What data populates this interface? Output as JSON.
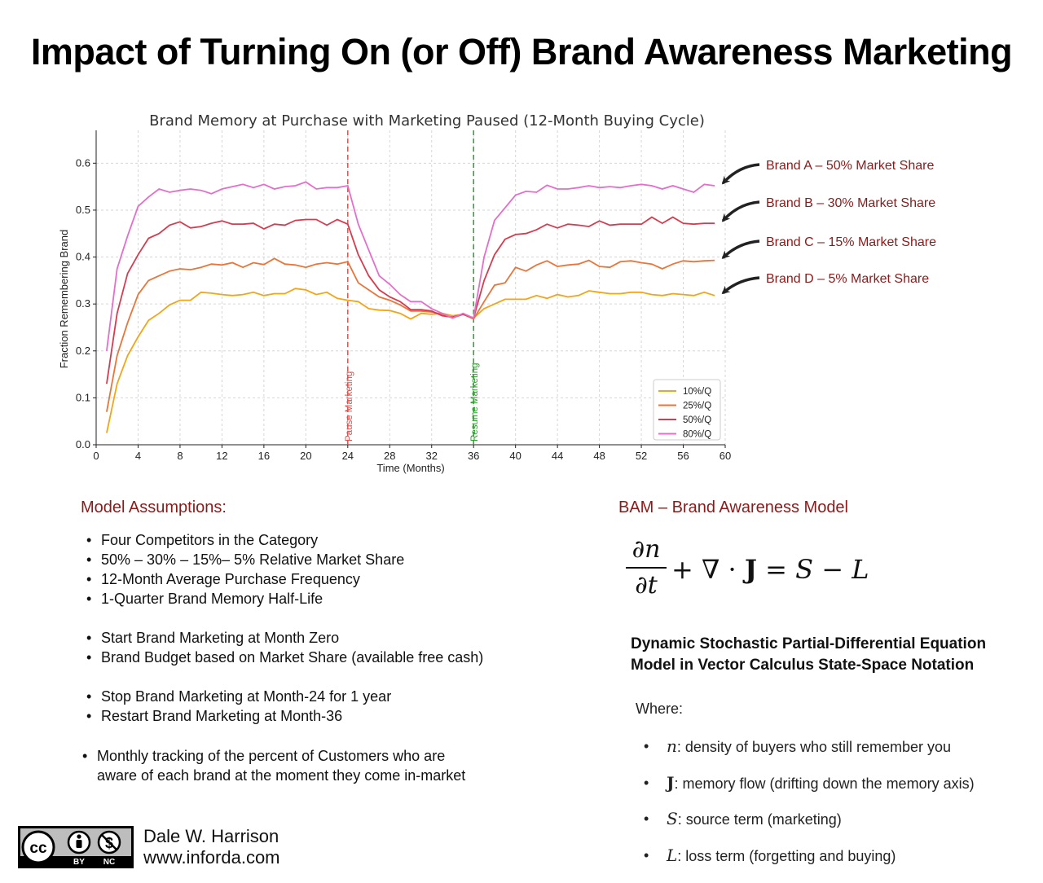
{
  "title": "Impact of Turning On (or Off) Brand Awareness Marketing",
  "chart_data": {
    "type": "line",
    "title": "Brand Memory at Purchase with Marketing Paused (12-Month Buying Cycle)",
    "xlabel": "Time (Months)",
    "ylabel": "Fraction Remembering Brand",
    "xlim": [
      0,
      60
    ],
    "ylim": [
      0,
      0.67
    ],
    "xticks": [
      0,
      4,
      8,
      12,
      16,
      20,
      24,
      28,
      32,
      36,
      40,
      44,
      48,
      52,
      56,
      60
    ],
    "yticks": [
      0.0,
      0.1,
      0.2,
      0.3,
      0.4,
      0.5,
      0.6
    ],
    "ytick_labels": [
      "0.0",
      "0.1",
      "0.2",
      "0.3",
      "0.4",
      "0.5",
      "0.6"
    ],
    "grid": true,
    "legend_position": "lower-right",
    "x": [
      1,
      2,
      3,
      4,
      5,
      6,
      7,
      8,
      9,
      10,
      11,
      12,
      13,
      14,
      15,
      16,
      17,
      18,
      19,
      20,
      21,
      22,
      23,
      24,
      25,
      26,
      27,
      28,
      29,
      30,
      31,
      32,
      33,
      34,
      35,
      36,
      37,
      38,
      39,
      40,
      41,
      42,
      43,
      44,
      45,
      46,
      47,
      48,
      49,
      50,
      51,
      52,
      53,
      54,
      55,
      56,
      57,
      58,
      59
    ],
    "series": [
      {
        "name": "10%/Q",
        "color": "#f2a516",
        "values": [
          0.025,
          0.13,
          0.19,
          0.23,
          0.265,
          0.28,
          0.298,
          0.308,
          0.308,
          0.325,
          0.323,
          0.32,
          0.318,
          0.32,
          0.325,
          0.318,
          0.322,
          0.322,
          0.333,
          0.33,
          0.32,
          0.325,
          0.312,
          0.308,
          0.305,
          0.29,
          0.287,
          0.286,
          0.28,
          0.268,
          0.28,
          0.278,
          0.28,
          0.275,
          0.278,
          0.27,
          0.29,
          0.3,
          0.31,
          0.31,
          0.31,
          0.318,
          0.312,
          0.32,
          0.315,
          0.318,
          0.328,
          0.325,
          0.322,
          0.322,
          0.325,
          0.325,
          0.32,
          0.318,
          0.322,
          0.32,
          0.318,
          0.325,
          0.318
        ]
      },
      {
        "name": "25%/Q",
        "color": "#e8753a",
        "values": [
          0.07,
          0.19,
          0.26,
          0.32,
          0.35,
          0.36,
          0.37,
          0.375,
          0.373,
          0.378,
          0.385,
          0.383,
          0.388,
          0.378,
          0.388,
          0.384,
          0.397,
          0.385,
          0.383,
          0.378,
          0.385,
          0.388,
          0.385,
          0.39,
          0.345,
          0.33,
          0.315,
          0.308,
          0.298,
          0.285,
          0.285,
          0.283,
          0.278,
          0.27,
          0.278,
          0.268,
          0.305,
          0.34,
          0.345,
          0.378,
          0.37,
          0.383,
          0.392,
          0.38,
          0.383,
          0.385,
          0.393,
          0.38,
          0.378,
          0.39,
          0.392,
          0.388,
          0.385,
          0.375,
          0.385,
          0.392,
          0.39,
          0.392,
          0.393
        ]
      },
      {
        "name": "50%/Q",
        "color": "#d63c50",
        "values": [
          0.13,
          0.28,
          0.365,
          0.405,
          0.44,
          0.45,
          0.468,
          0.475,
          0.462,
          0.465,
          0.472,
          0.477,
          0.47,
          0.47,
          0.472,
          0.46,
          0.47,
          0.468,
          0.478,
          0.48,
          0.48,
          0.468,
          0.48,
          0.47,
          0.405,
          0.36,
          0.33,
          0.315,
          0.305,
          0.288,
          0.288,
          0.285,
          0.275,
          0.272,
          0.278,
          0.27,
          0.35,
          0.405,
          0.438,
          0.448,
          0.45,
          0.458,
          0.47,
          0.462,
          0.47,
          0.468,
          0.465,
          0.477,
          0.468,
          0.47,
          0.47,
          0.47,
          0.485,
          0.472,
          0.485,
          0.472,
          0.47,
          0.472,
          0.472
        ]
      },
      {
        "name": "80%/Q",
        "color": "#e36fcb",
        "values": [
          0.2,
          0.375,
          0.445,
          0.508,
          0.528,
          0.545,
          0.538,
          0.542,
          0.545,
          0.542,
          0.535,
          0.545,
          0.55,
          0.555,
          0.548,
          0.555,
          0.545,
          0.55,
          0.552,
          0.56,
          0.545,
          0.548,
          0.548,
          0.552,
          0.47,
          0.415,
          0.36,
          0.342,
          0.32,
          0.305,
          0.305,
          0.29,
          0.28,
          0.27,
          0.28,
          0.27,
          0.4,
          0.478,
          0.505,
          0.532,
          0.54,
          0.538,
          0.553,
          0.545,
          0.545,
          0.548,
          0.552,
          0.548,
          0.55,
          0.548,
          0.552,
          0.555,
          0.552,
          0.545,
          0.552,
          0.545,
          0.538,
          0.555,
          0.552
        ]
      }
    ],
    "markers": [
      {
        "x": 24,
        "label": "Pause Marketing",
        "color": "#d9534f"
      },
      {
        "x": 36,
        "label": "Resume Marketing",
        "color": "#2ca02c"
      }
    ],
    "annotations": [
      {
        "text": "Brand A – 50% Market Share",
        "series": "80%/Q"
      },
      {
        "text": "Brand B – 30% Market Share",
        "series": "50%/Q"
      },
      {
        "text": "Brand C – 15% Market Share",
        "series": "25%/Q"
      },
      {
        "text": "Brand D –   5% Market Share",
        "series": "10%/Q"
      }
    ]
  },
  "assumptions": {
    "heading": "Model Assumptions:",
    "items": [
      "Four Competitors in the Category",
      "50% – 30% – 15%– 5% Relative Market Share",
      "12-Month Average Purchase Frequency",
      "1-Quarter Brand Memory Half-Life",
      "Start Brand Marketing at Month Zero",
      "Brand Budget based on Market Share (available free cash)",
      "Stop Brand Marketing at Month-24 for 1 year",
      "Restart Brand Marketing at Month-36",
      "Monthly tracking of the percent of Customers who are",
      "aware of each brand at the moment they come in-market"
    ]
  },
  "model": {
    "heading": "BAM – Brand Awareness Model",
    "equation": {
      "numerator": "∂n",
      "denominator": "∂t",
      "plus": "+",
      "nabla": "∇ ·",
      "J": "J",
      "equals": "=",
      "S": "S",
      "minus": "−",
      "L": "L"
    },
    "description_line1": "Dynamic Stochastic Partial-Differential Equation",
    "description_line2": "Model in Vector Calculus State-Space Notation",
    "where_label": "Where:",
    "definitions": [
      {
        "symbol": "n",
        "text": ": density of buyers who still remember you"
      },
      {
        "symbol": "J",
        "text": ": memory flow (drifting down the memory axis)"
      },
      {
        "symbol": "S",
        "text": ": source term (marketing)"
      },
      {
        "symbol": "L",
        "text": ": loss term (forgetting and buying)"
      }
    ]
  },
  "footer": {
    "license_cc": "cc",
    "license_by": "BY",
    "license_nc": "NC",
    "author": "Dale W. Harrison",
    "website": "www.inforda.com"
  }
}
